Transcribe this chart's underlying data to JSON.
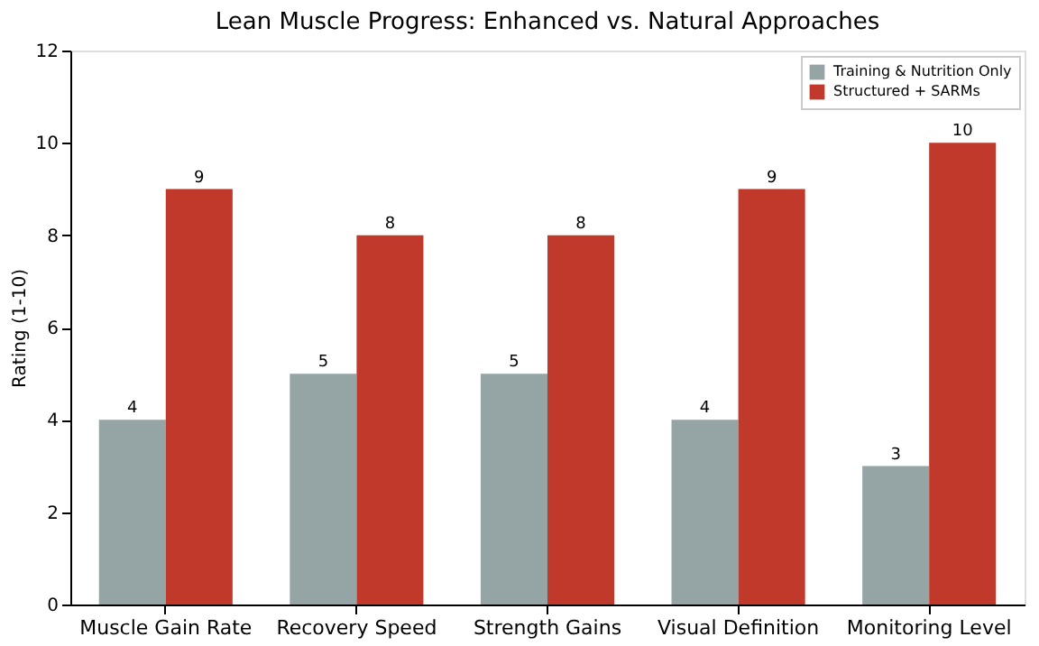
{
  "chart_data": {
    "type": "bar",
    "title": "Lean Muscle Progress: Enhanced vs. Natural Approaches",
    "ylabel": "Rating (1-10)",
    "categories": [
      "Muscle Gain Rate",
      "Recovery Speed",
      "Strength Gains",
      "Visual Definition",
      "Monitoring Level"
    ],
    "series": [
      {
        "name": "Training & Nutrition Only",
        "color": "#95a5a6",
        "values": [
          4,
          5,
          5,
          4,
          3
        ]
      },
      {
        "name": "Structured + SARMs",
        "color": "#c0392b",
        "values": [
          9,
          8,
          8,
          9,
          10
        ]
      }
    ],
    "ylim": [
      0,
      12
    ],
    "yticks": [
      0,
      2,
      4,
      6,
      8,
      10,
      12
    ],
    "data_labels": true,
    "legend": "top right",
    "grid": false
  }
}
